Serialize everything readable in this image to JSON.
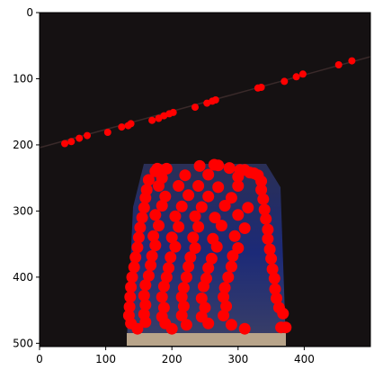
{
  "chart_data": {
    "type": "scatter",
    "title": "",
    "xlabel": "",
    "ylabel": "",
    "xlim": [
      0,
      500
    ],
    "ylim": [
      505,
      0
    ],
    "y_inverted": true,
    "grid": false,
    "x_ticks": [
      0,
      100,
      200,
      300,
      400
    ],
    "y_ticks": [
      0,
      100,
      200,
      300,
      400,
      500
    ],
    "marker_color": "#ff0000",
    "background_image": "night photo of a lit building facade with a diagonal light line",
    "series": [
      {
        "name": "",
        "line_points": [
          [
            38,
            198
          ],
          [
            48,
            195
          ],
          [
            60,
            190
          ],
          [
            72,
            186
          ],
          [
            103,
            181
          ],
          [
            124,
            173
          ],
          [
            134,
            171
          ],
          [
            138,
            168
          ],
          [
            170,
            163
          ],
          [
            180,
            160
          ],
          [
            188,
            156
          ],
          [
            196,
            153
          ],
          [
            202,
            151
          ],
          [
            235,
            143
          ],
          [
            253,
            137
          ],
          [
            261,
            134
          ],
          [
            266,
            132
          ],
          [
            330,
            114
          ],
          [
            335,
            113
          ],
          [
            370,
            104
          ],
          [
            388,
            97
          ],
          [
            398,
            93
          ],
          [
            452,
            79
          ],
          [
            472,
            73
          ]
        ],
        "building_points": [
          [
            175,
            240
          ],
          [
            178,
            236
          ],
          [
            192,
            236
          ],
          [
            242,
            232
          ],
          [
            264,
            230
          ],
          [
            270,
            231
          ],
          [
            287,
            235
          ],
          [
            303,
            238
          ],
          [
            310,
            238
          ],
          [
            318,
            242
          ],
          [
            324,
            243
          ],
          [
            165,
            253
          ],
          [
            185,
            250
          ],
          [
            220,
            246
          ],
          [
            255,
            245
          ],
          [
            300,
            248
          ],
          [
            330,
            246
          ],
          [
            335,
            255
          ],
          [
            162,
            268
          ],
          [
            180,
            262
          ],
          [
            210,
            262
          ],
          [
            240,
            262
          ],
          [
            270,
            264
          ],
          [
            300,
            262
          ],
          [
            335,
            268
          ],
          [
            160,
            280
          ],
          [
            190,
            278
          ],
          [
            225,
            276
          ],
          [
            255,
            278
          ],
          [
            290,
            280
          ],
          [
            338,
            282
          ],
          [
            158,
            295
          ],
          [
            185,
            292
          ],
          [
            215,
            293
          ],
          [
            245,
            294
          ],
          [
            280,
            292
          ],
          [
            315,
            295
          ],
          [
            340,
            298
          ],
          [
            155,
            310
          ],
          [
            175,
            306
          ],
          [
            205,
            308
          ],
          [
            235,
            308
          ],
          [
            265,
            310
          ],
          [
            300,
            306
          ],
          [
            342,
            312
          ],
          [
            152,
            325
          ],
          [
            180,
            322
          ],
          [
            210,
            324
          ],
          [
            240,
            324
          ],
          [
            275,
            322
          ],
          [
            310,
            326
          ],
          [
            345,
            328
          ],
          [
            150,
            340
          ],
          [
            172,
            338
          ],
          [
            200,
            340
          ],
          [
            232,
            340
          ],
          [
            262,
            342
          ],
          [
            295,
            338
          ],
          [
            345,
            342
          ],
          [
            148,
            355
          ],
          [
            175,
            352
          ],
          [
            205,
            354
          ],
          [
            235,
            356
          ],
          [
            268,
            354
          ],
          [
            300,
            356
          ],
          [
            348,
            358
          ],
          [
            145,
            370
          ],
          [
            170,
            368
          ],
          [
            198,
            370
          ],
          [
            228,
            370
          ],
          [
            260,
            372
          ],
          [
            292,
            368
          ],
          [
            350,
            372
          ],
          [
            143,
            385
          ],
          [
            168,
            382
          ],
          [
            195,
            386
          ],
          [
            225,
            384
          ],
          [
            255,
            386
          ],
          [
            290,
            384
          ],
          [
            352,
            388
          ],
          [
            140,
            400
          ],
          [
            165,
            398
          ],
          [
            192,
            400
          ],
          [
            222,
            400
          ],
          [
            252,
            402
          ],
          [
            285,
            400
          ],
          [
            355,
            402
          ],
          [
            138,
            415
          ],
          [
            160,
            412
          ],
          [
            188,
            414
          ],
          [
            218,
            416
          ],
          [
            248,
            414
          ],
          [
            280,
            416
          ],
          [
            356,
            418
          ],
          [
            137,
            430
          ],
          [
            158,
            428
          ],
          [
            185,
            430
          ],
          [
            215,
            430
          ],
          [
            245,
            432
          ],
          [
            278,
            430
          ],
          [
            358,
            432
          ],
          [
            136,
            445
          ],
          [
            160,
            442
          ],
          [
            188,
            446
          ],
          [
            218,
            444
          ],
          [
            250,
            446
          ],
          [
            282,
            444
          ],
          [
            362,
            446
          ],
          [
            135,
            458
          ],
          [
            158,
            456
          ],
          [
            185,
            460
          ],
          [
            215,
            458
          ],
          [
            245,
            460
          ],
          [
            278,
            458
          ],
          [
            368,
            455
          ],
          [
            138,
            470
          ],
          [
            160,
            468
          ],
          [
            190,
            470
          ],
          [
            222,
            472
          ],
          [
            255,
            470
          ],
          [
            290,
            472
          ],
          [
            365,
            476
          ],
          [
            148,
            478
          ],
          [
            200,
            478
          ],
          [
            310,
            478
          ],
          [
            372,
            476
          ]
        ]
      }
    ]
  }
}
